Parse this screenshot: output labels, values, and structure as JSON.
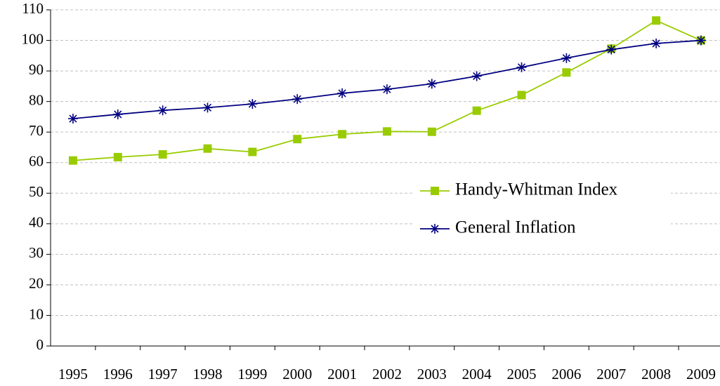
{
  "chart_data": {
    "type": "line",
    "categories": [
      "1995",
      "1996",
      "1997",
      "1998",
      "1999",
      "2000",
      "2001",
      "2002",
      "2003",
      "2004",
      "2005",
      "2006",
      "2007",
      "2008",
      "2009"
    ],
    "series": [
      {
        "name": "Handy-Whitman Index",
        "color": "#99cc00",
        "marker": "square",
        "values": [
          60.7,
          61.8,
          62.7,
          64.6,
          63.5,
          67.7,
          69.3,
          70.2,
          70.1,
          77.0,
          82.1,
          89.5,
          97.3,
          106.5,
          100
        ]
      },
      {
        "name": "General Inflation",
        "color": "#000080",
        "marker": "star",
        "values": [
          74.4,
          75.8,
          77.1,
          78.0,
          79.2,
          80.8,
          82.7,
          84.0,
          85.8,
          88.3,
          91.2,
          94.2,
          97.0,
          99.0,
          100
        ]
      }
    ],
    "ylim": [
      0,
      110
    ],
    "yticks": [
      0,
      10,
      20,
      30,
      40,
      50,
      60,
      70,
      80,
      90,
      100,
      110
    ],
    "grid": true,
    "legend": "right"
  }
}
